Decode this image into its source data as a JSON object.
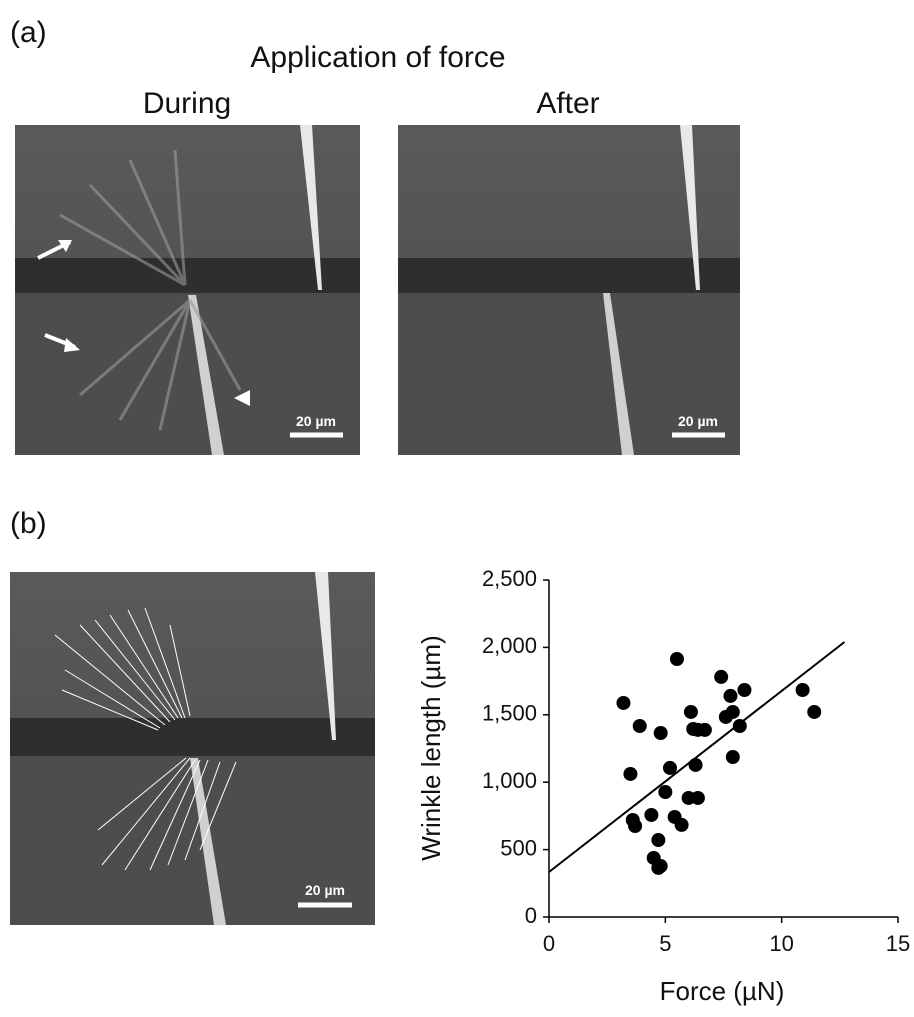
{
  "figure": {
    "panel_a": {
      "label": "(a)",
      "title": "Application of force",
      "during": "During",
      "after": "After",
      "scale_bars": [
        "20 µm",
        "20 µm"
      ]
    },
    "panel_b": {
      "label": "(b)",
      "scale_bar": "20 µm"
    }
  },
  "chart_data": {
    "type": "scatter",
    "xlabel": "Force (µN)",
    "ylabel": "Wrinkle length (µm)",
    "color": "#000000",
    "x": [
      3.2,
      3.5,
      3.9,
      3.6,
      3.7,
      5.5,
      4.8,
      4.4,
      4.5,
      4.7,
      4.8,
      4.7,
      5.0,
      5.2,
      5.4,
      5.7,
      6.0,
      6.4,
      6.1,
      6.2,
      6.4,
      6.7,
      6.3,
      7.4,
      7.8,
      7.6,
      7.9,
      8.2,
      8.4,
      7.9,
      10.9,
      11.4
    ],
    "values": [
      1588,
      1061,
      1417,
      720,
      675,
      1914,
      1365,
      757,
      438,
      364,
      378,
      571,
      927,
      1106,
      742,
      683,
      883,
      883,
      1521,
      1395,
      1388,
      1388,
      1128,
      1781,
      1640,
      1484,
      1521,
      1417,
      1684,
      1187,
      1684,
      1521
    ],
    "trendline": {
      "x": [
        0,
        12.7
      ],
      "y": [
        334,
        2040
      ]
    },
    "xlim": [
      0,
      15
    ],
    "ylim": [
      0,
      2500
    ],
    "xticks": [
      0,
      5,
      10,
      15
    ],
    "yticks": [
      0,
      500,
      {
        "value": 1000,
        "label": "1,000"
      },
      {
        "value": 1500,
        "label": "1,500"
      },
      {
        "value": 2000,
        "label": "2,000"
      },
      {
        "value": 2500,
        "label": "2,500"
      }
    ]
  }
}
